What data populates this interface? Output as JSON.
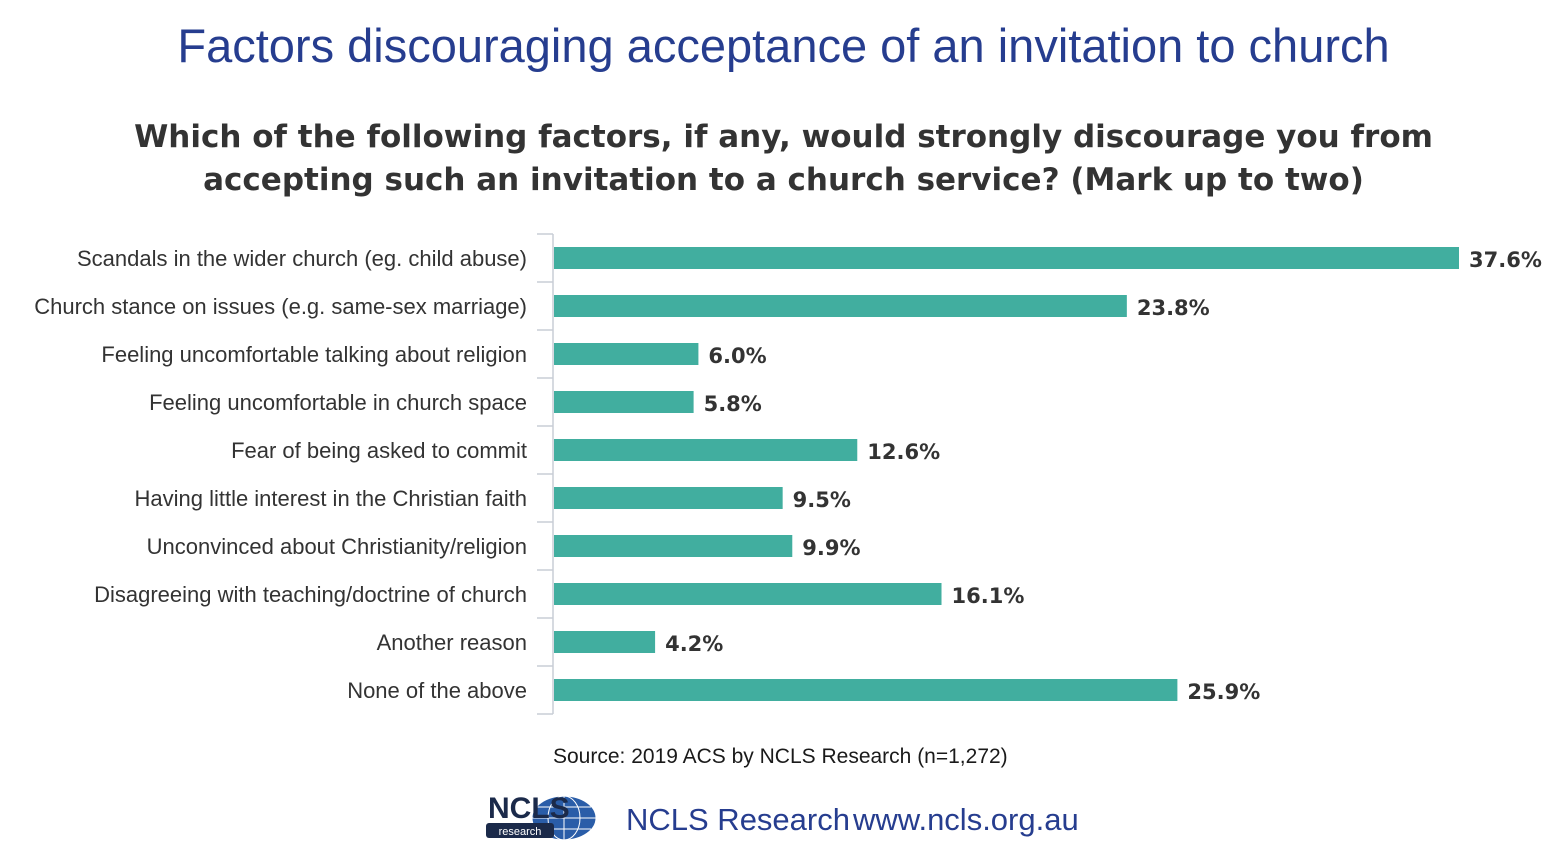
{
  "chart_data": {
    "type": "bar",
    "orientation": "horizontal",
    "title": "Factors discouraging acceptance of an invitation to church",
    "subtitle_lines": [
      "Which of the following factors, if any, would strongly discourage you from",
      "accepting such an invitation to a church service? (Mark up to two)"
    ],
    "categories": [
      "Scandals in the wider church (eg. child abuse)",
      "Church stance on issues (e.g. same-sex marriage)",
      "Feeling uncomfortable talking about religion",
      "Feeling uncomfortable in church space",
      "Fear of being asked to commit",
      "Having little interest in the Christian faith",
      "Unconvinced about Christianity/religion",
      "Disagreeing with teaching/doctrine of church",
      "Another reason",
      "None of the above"
    ],
    "values": [
      37.6,
      23.8,
      6.0,
      5.8,
      12.6,
      9.5,
      9.9,
      16.1,
      4.2,
      25.9
    ],
    "value_labels": [
      "37.6%",
      "23.8%",
      "6.0%",
      "5.8%",
      "12.6%",
      "9.5%",
      "9.9%",
      "16.1%",
      "4.2%",
      "25.9%"
    ],
    "xlim": [
      0,
      37.6
    ],
    "grid": false,
    "legend": "none",
    "bar_color": "#41ae9f"
  },
  "footer": {
    "source": "Source: 2019 ACS by NCLS Research (n=1,272)",
    "brand": "NCLS Research",
    "website": "www.ncls.org.au",
    "logo_text": "NCLS",
    "logo_subtext": "research"
  },
  "colors": {
    "title": "#263d8f",
    "subtitle": "#333333",
    "axis": "#c8cdd6",
    "logo_dark": "#1b2a4a",
    "logo_blue": "#2a5da8"
  }
}
